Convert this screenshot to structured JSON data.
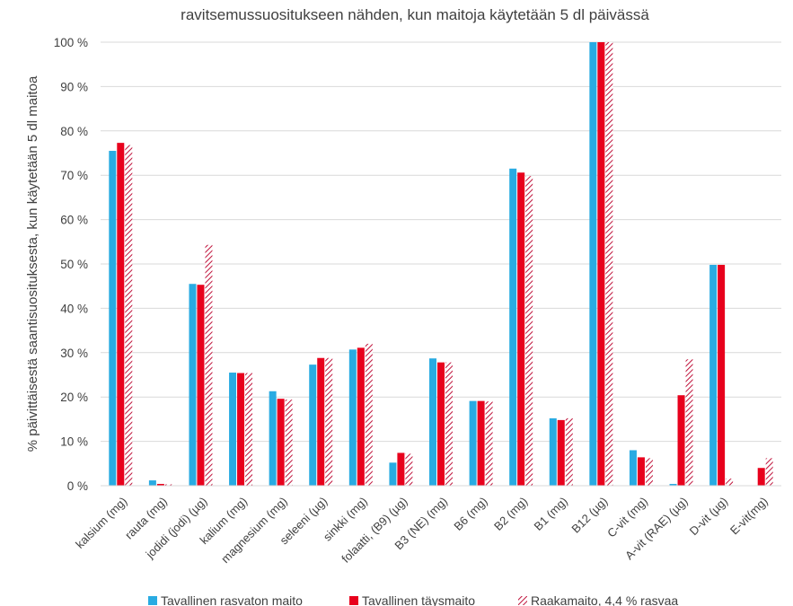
{
  "chart_data": {
    "type": "bar",
    "title_lines": [
      "...",
      "ravitsemussuositukseen nähden, kun maitoja käytetään 5 dl päivässä"
    ],
    "ylabel": "% päivittäisestä saantisuosituksesta, kun käytetään 5 dl maitoa",
    "xlabel": "",
    "ylim": [
      0,
      100
    ],
    "yticks": [
      "0 %",
      "10 %",
      "20 %",
      "30 %",
      "40 %",
      "50 %",
      "60 %",
      "70 %",
      "80 %",
      "90 %",
      "100 %"
    ],
    "grid": true,
    "legend_position": "bottom",
    "categories": [
      "kalsium (mg)",
      "rauta (mg)",
      "jodidi (jodi) (µg)",
      "kalium (mg)",
      "magnesium (mg)",
      "seleeni (µg)",
      "sinkki (mg)",
      "folaatti, (B9) (µg)",
      "B3 (NE) (mg)",
      "B6 (mg)",
      "B2 (mg)",
      "B1 (mg)",
      "B12 (µg)",
      "C-vit (mg)",
      "A-vit (RAE) (µg)",
      "D-vit (µg)",
      "E-vit(mg)"
    ],
    "series": [
      {
        "name": "Tavallinen rasvaton maito",
        "color": "#29ABE2",
        "pattern": "solid",
        "values": [
          75.5,
          1.2,
          45.5,
          25.5,
          21.3,
          27.3,
          30.7,
          5.2,
          28.7,
          19.1,
          71.5,
          15.2,
          100,
          8.0,
          0.4,
          49.8,
          0
        ]
      },
      {
        "name": "Tavallinen täysmaito",
        "color": "#E8001C",
        "pattern": "solid",
        "values": [
          77.3,
          0.4,
          45.3,
          25.4,
          19.6,
          28.8,
          31.1,
          7.4,
          27.8,
          19.1,
          70.6,
          14.8,
          100,
          6.4,
          20.4,
          49.8,
          4.0
        ]
      },
      {
        "name": "Raakamaito, 4,4 % rasvaa",
        "color": "#C0143C",
        "pattern": "hatched",
        "values": [
          76.8,
          0.3,
          54.3,
          25.4,
          19.4,
          28.8,
          32.0,
          7.2,
          27.8,
          19.0,
          69.8,
          15.2,
          100,
          6.2,
          28.5,
          1.6,
          6.2
        ]
      }
    ]
  }
}
